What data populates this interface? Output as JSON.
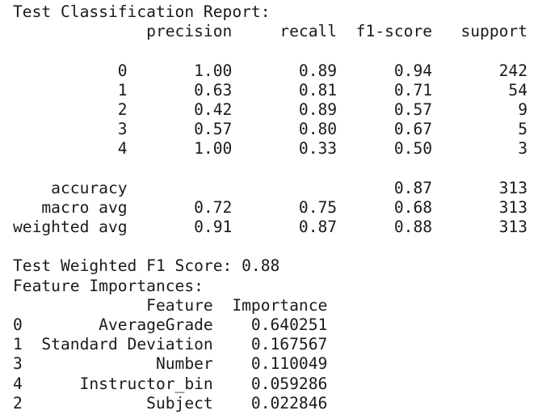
{
  "report": {
    "title": "Test Classification Report:",
    "headers": [
      "precision",
      "recall",
      "f1-score",
      "support"
    ],
    "rows": [
      {
        "label": "0",
        "precision": "1.00",
        "recall": "0.89",
        "f1": "0.94",
        "support": "242"
      },
      {
        "label": "1",
        "precision": "0.63",
        "recall": "0.81",
        "f1": "0.71",
        "support": "54"
      },
      {
        "label": "2",
        "precision": "0.42",
        "recall": "0.89",
        "f1": "0.57",
        "support": "9"
      },
      {
        "label": "3",
        "precision": "0.57",
        "recall": "0.80",
        "f1": "0.67",
        "support": "5"
      },
      {
        "label": "4",
        "precision": "1.00",
        "recall": "0.33",
        "f1": "0.50",
        "support": "3"
      }
    ],
    "summary": [
      {
        "label": "accuracy",
        "precision": "",
        "recall": "",
        "f1": "0.87",
        "support": "313"
      },
      {
        "label": "macro avg",
        "precision": "0.72",
        "recall": "0.75",
        "f1": "0.68",
        "support": "313"
      },
      {
        "label": "weighted avg",
        "precision": "0.91",
        "recall": "0.87",
        "f1": "0.88",
        "support": "313"
      }
    ]
  },
  "f1_line": "Test Weighted F1 Score: 0.88",
  "features": {
    "title": "Feature Importances:",
    "headers": [
      "Feature",
      "Importance"
    ],
    "rows": [
      {
        "index": "0",
        "feature": "AverageGrade",
        "importance": "0.640251"
      },
      {
        "index": "1",
        "feature": "Standard Deviation",
        "importance": "0.167567"
      },
      {
        "index": "3",
        "feature": "Number",
        "importance": "0.110049"
      },
      {
        "index": "4",
        "feature": "Instructor_bin",
        "importance": "0.059286"
      },
      {
        "index": "2",
        "feature": "Subject",
        "importance": "0.022846"
      }
    ]
  }
}
